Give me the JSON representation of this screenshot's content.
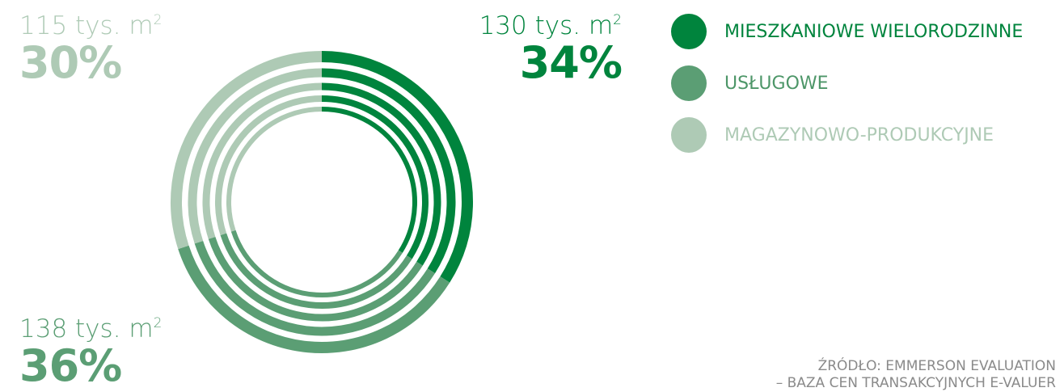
{
  "chart_data": {
    "type": "pie",
    "categories": [
      "MIESZKANIOWE WIELORODZINNE",
      "USŁUGOWE",
      "MAGAZYNOWO-PRODUKCYJNE"
    ],
    "values": [
      130,
      138,
      115
    ],
    "unit": "tys. m2",
    "percentages": [
      34,
      36,
      30
    ],
    "colors": [
      "#00843d",
      "#5b9e74",
      "#aecab5"
    ],
    "legend_position": "right",
    "callouts": {
      "residential": {
        "amount": "130 tys. m",
        "superscript": "2",
        "pct": "34%",
        "color": "#00843d"
      },
      "services": {
        "amount": "138 tys. m",
        "superscript": "2",
        "pct": "36%",
        "color": "#5b9e74"
      },
      "warehouse": {
        "amount": "115 tys. m",
        "superscript": "2",
        "pct": "30%",
        "color": "#aecab5"
      }
    }
  },
  "legend": [
    {
      "label": "MIESZKANIOWE WIELORODZINNE",
      "color": "#00843d",
      "text_color": "#00843d"
    },
    {
      "label": "USŁUGOWE",
      "color": "#5b9e74",
      "text_color": "#4d9668"
    },
    {
      "label": "MAGAZYNOWO-PRODUKCYJNE",
      "color": "#aecab5",
      "text_color": "#aecab5"
    }
  ],
  "source": {
    "line1": "ŹRÓDŁO: EMMERSON EVALUATION",
    "line2": "– BAZA CEN TRANSAKCYJNYCH E-VALUER"
  }
}
